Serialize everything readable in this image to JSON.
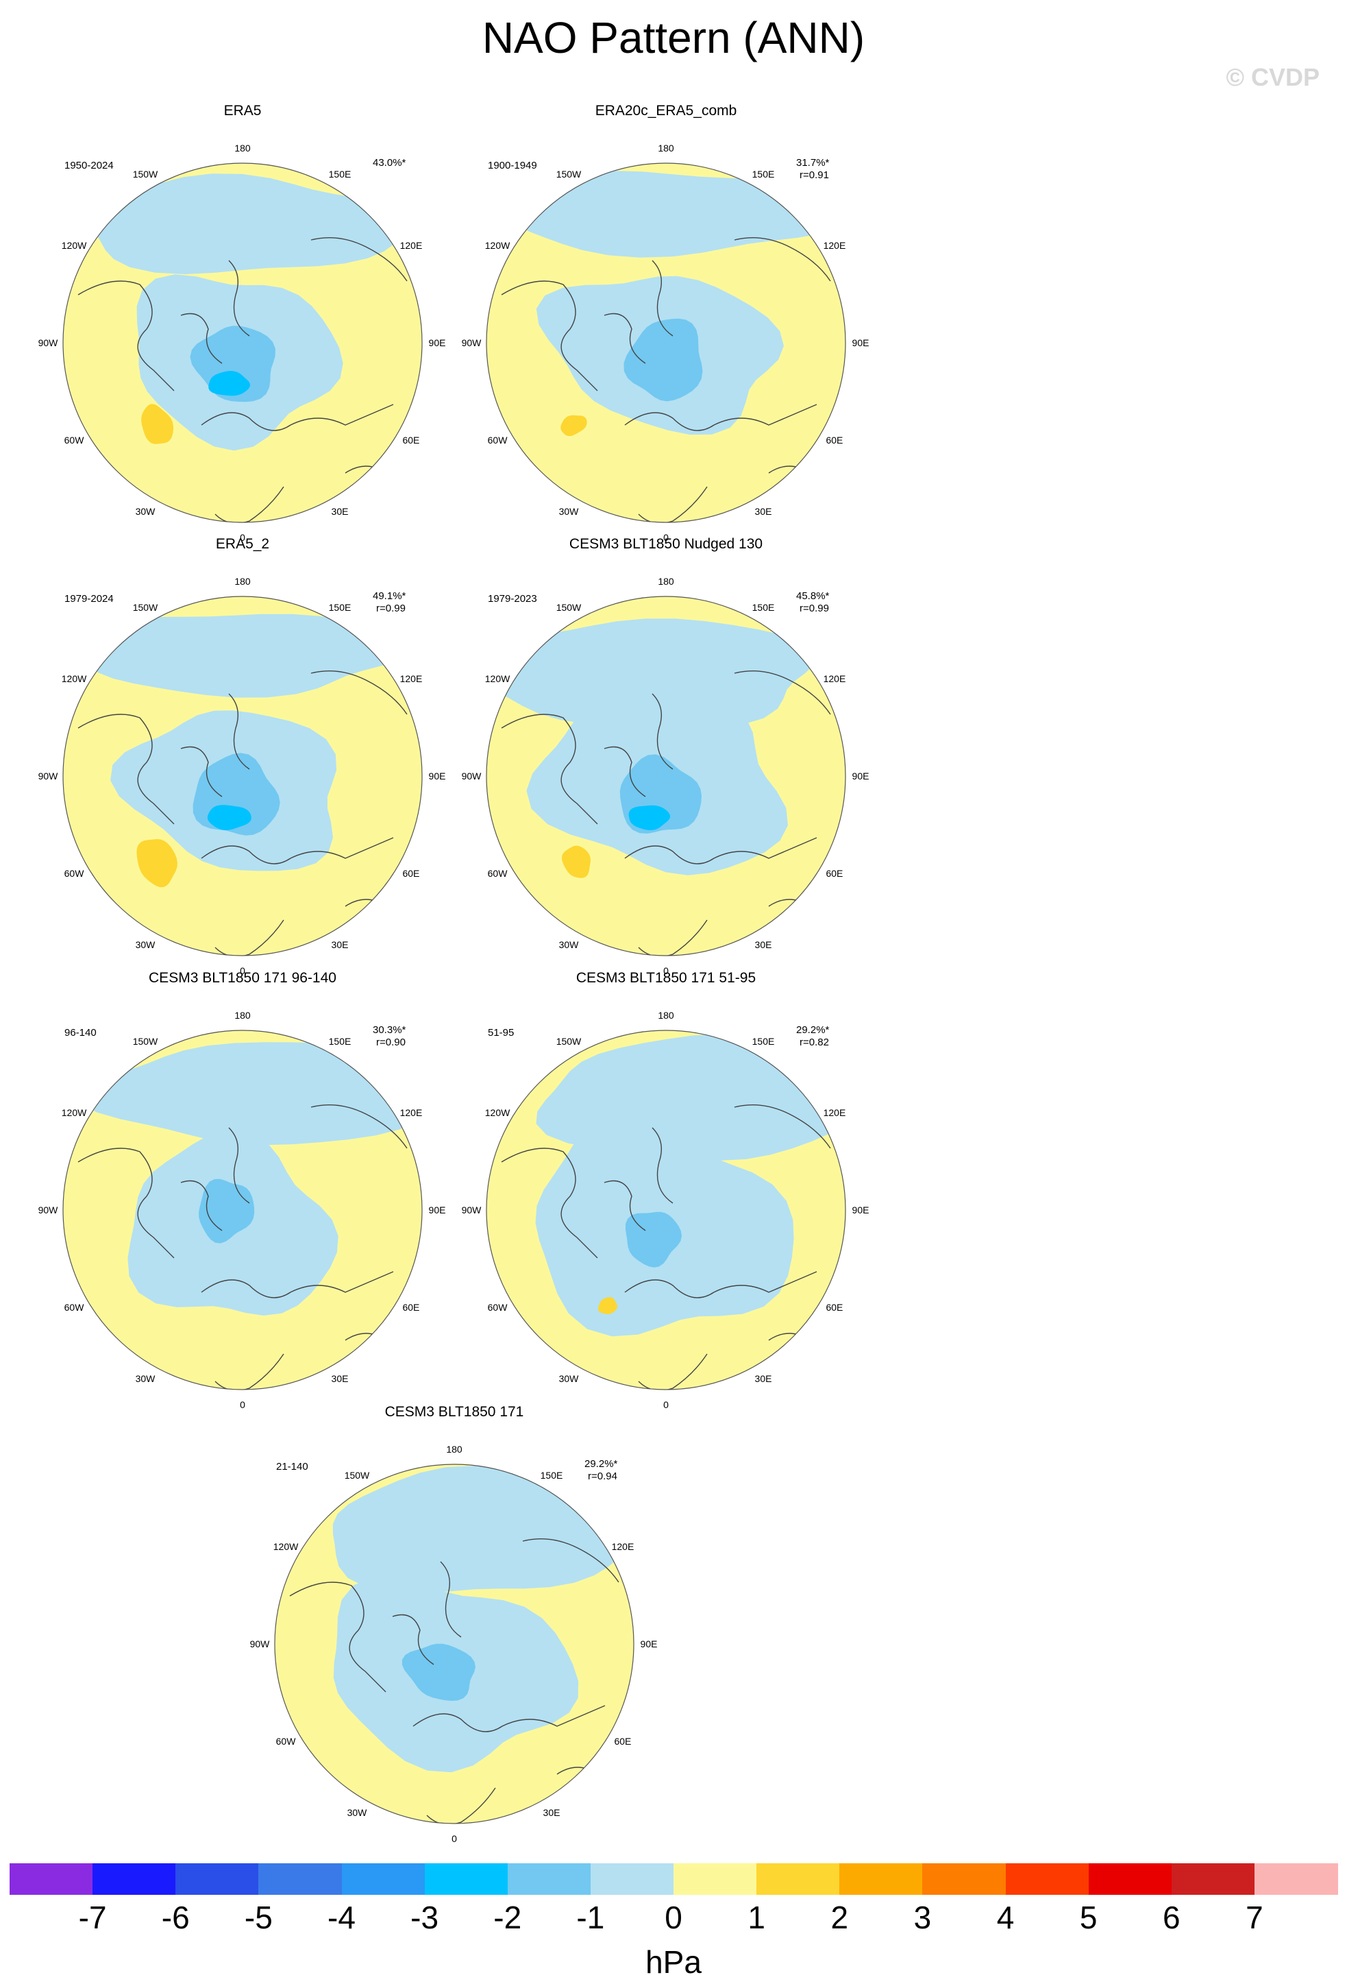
{
  "title": "NAO Pattern (ANN)",
  "copyright": "© CVDP",
  "panels": [
    {
      "title": "ERA5",
      "period": "1950-2024",
      "pct": "43.0%*",
      "r": ""
    },
    {
      "title": "ERA20c_ERA5_comb",
      "period": "1900-1949",
      "pct": "31.7%*",
      "r": "r=0.91"
    },
    {
      "title": "ERA5_2",
      "period": "1979-2024",
      "pct": "49.1%*",
      "r": "r=0.99"
    },
    {
      "title": "CESM3 BLT1850 Nudged 130",
      "period": "1979-2023",
      "pct": "45.8%*",
      "r": "r=0.99"
    },
    {
      "title": "CESM3 BLT1850 171 96-140",
      "period": "96-140",
      "pct": "30.3%*",
      "r": "r=0.90"
    },
    {
      "title": "CESM3 BLT1850 171 51-95",
      "period": "51-95",
      "pct": "29.2%*",
      "r": "r=0.82"
    },
    {
      "title": "CESM3 BLT1850 171",
      "period": "21-140",
      "pct": "29.2%*",
      "r": "r=0.94"
    }
  ],
  "lon_labels": {
    "180": "180",
    "150E": "150E",
    "120E": "120E",
    "90E": "90E",
    "60E": "60E",
    "30E": "30E",
    "0": "0",
    "30W": "30W",
    "60W": "60W",
    "90W": "90W",
    "120W": "120W",
    "150W": "150W"
  },
  "colorbar": {
    "units": "hPa",
    "colors": [
      "#8a2be2",
      "#1a1aff",
      "#2a4ee8",
      "#3a7ae8",
      "#2a98f5",
      "#00c2ff",
      "#72c8f0",
      "#b4e0f2",
      "#fcf89a",
      "#fdd631",
      "#fdaa00",
      "#fd7d00",
      "#fd3a00",
      "#e80000",
      "#cc2020",
      "#fbb4b4"
    ],
    "ticks": [
      "-7",
      "-6",
      "-5",
      "-4",
      "-3",
      "-2",
      "-1",
      "0",
      "1",
      "2",
      "3",
      "4",
      "5",
      "6",
      "7"
    ]
  },
  "colors": {
    "land_outline": "#444444",
    "rim": "#555555"
  }
}
